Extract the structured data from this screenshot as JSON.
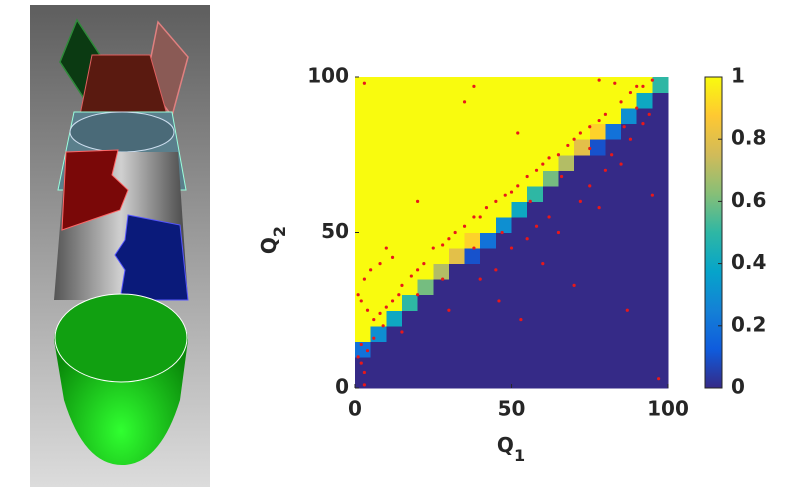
{
  "chart_data": {
    "type": "heatmap",
    "xlabel": {
      "text": "Q",
      "subscript": "1"
    },
    "ylabel": {
      "text": "Q",
      "subscript": "2"
    },
    "xlim": [
      0,
      100
    ],
    "ylim": [
      0,
      100
    ],
    "xticks": [
      0,
      50,
      100
    ],
    "yticks": [
      0,
      50,
      100
    ],
    "z": [
      [
        0,
        0,
        0,
        0,
        0,
        0,
        0,
        0,
        0,
        0,
        0,
        0,
        0,
        0,
        0,
        0,
        0,
        0,
        0,
        0
      ],
      [
        0,
        0,
        0,
        0,
        0,
        0,
        0,
        0,
        0,
        0,
        0,
        0,
        0,
        0,
        0,
        0,
        0,
        0,
        0,
        0
      ],
      [
        0.2,
        0,
        0,
        0,
        0,
        0,
        0,
        0,
        0,
        0,
        0,
        0,
        0,
        0,
        0,
        0,
        0,
        0,
        0,
        0
      ],
      [
        1,
        0.3,
        0,
        0,
        0,
        0,
        0,
        0,
        0,
        0,
        0,
        0,
        0,
        0,
        0,
        0,
        0,
        0,
        0,
        0
      ],
      [
        1,
        1,
        0.4,
        0,
        0,
        0,
        0,
        0,
        0,
        0,
        0,
        0,
        0,
        0,
        0,
        0,
        0,
        0,
        0,
        0
      ],
      [
        1,
        1,
        1,
        0.5,
        0,
        0,
        0,
        0,
        0,
        0,
        0,
        0,
        0,
        0,
        0,
        0,
        0,
        0,
        0,
        0
      ],
      [
        1,
        1,
        1,
        1,
        0.6,
        0,
        0,
        0,
        0,
        0,
        0,
        0,
        0,
        0,
        0,
        0,
        0,
        0,
        0,
        0
      ],
      [
        1,
        1,
        1,
        1,
        1,
        0.7,
        0,
        0,
        0,
        0,
        0,
        0,
        0,
        0,
        0,
        0,
        0,
        0,
        0,
        0
      ],
      [
        1,
        1,
        1,
        1,
        1,
        1,
        0.8,
        0.1,
        0,
        0,
        0,
        0,
        0,
        0,
        0,
        0,
        0,
        0,
        0,
        0
      ],
      [
        1,
        1,
        1,
        1,
        1,
        1,
        1,
        0.9,
        0.2,
        0,
        0,
        0,
        0,
        0,
        0,
        0,
        0,
        0,
        0,
        0
      ],
      [
        1,
        1,
        1,
        1,
        1,
        1,
        1,
        1,
        1,
        0.3,
        0,
        0,
        0,
        0,
        0,
        0,
        0,
        0,
        0,
        0
      ],
      [
        1,
        1,
        1,
        1,
        1,
        1,
        1,
        1,
        1,
        1,
        0.4,
        0,
        0,
        0,
        0,
        0,
        0,
        0,
        0,
        0
      ],
      [
        1,
        1,
        1,
        1,
        1,
        1,
        1,
        1,
        1,
        1,
        1,
        0.5,
        0,
        0,
        0,
        0,
        0,
        0,
        0,
        0
      ],
      [
        1,
        1,
        1,
        1,
        1,
        1,
        1,
        1,
        1,
        1,
        1,
        1,
        0.6,
        0,
        0,
        0,
        0,
        0,
        0,
        0
      ],
      [
        1,
        1,
        1,
        1,
        1,
        1,
        1,
        1,
        1,
        1,
        1,
        1,
        1,
        0.7,
        0,
        0,
        0,
        0,
        0,
        0
      ],
      [
        1,
        1,
        1,
        1,
        1,
        1,
        1,
        1,
        1,
        1,
        1,
        1,
        1,
        1,
        0.8,
        0.1,
        0,
        0,
        0,
        0
      ],
      [
        1,
        1,
        1,
        1,
        1,
        1,
        1,
        1,
        1,
        1,
        1,
        1,
        1,
        1,
        1,
        0.9,
        0.2,
        0,
        0,
        0
      ],
      [
        1,
        1,
        1,
        1,
        1,
        1,
        1,
        1,
        1,
        1,
        1,
        1,
        1,
        1,
        1,
        1,
        1,
        0.3,
        0,
        0
      ],
      [
        1,
        1,
        1,
        1,
        1,
        1,
        1,
        1,
        1,
        1,
        1,
        1,
        1,
        1,
        1,
        1,
        1,
        1,
        0.4,
        0
      ],
      [
        1,
        1,
        1,
        1,
        1,
        1,
        1,
        1,
        1,
        1,
        1,
        1,
        1,
        1,
        1,
        1,
        1,
        1,
        1,
        0.5
      ]
    ],
    "colormap": [
      "#352a87",
      "#0f5cdd",
      "#1481d6",
      "#06a4ca",
      "#2eb7a4",
      "#87bf77",
      "#d1bb59",
      "#fec832",
      "#f9fb0e"
    ],
    "colorbar": {
      "lim": [
        0,
        1
      ],
      "ticks": [
        0,
        0.2,
        0.4,
        0.6,
        0.8,
        1
      ]
    },
    "scatter": {
      "color": "#e8181a",
      "x": [
        3,
        38,
        35,
        78,
        83,
        90,
        52,
        20,
        10,
        8,
        12,
        5,
        3,
        1,
        2,
        4,
        6,
        8,
        10,
        12,
        14,
        15,
        18,
        20,
        22,
        25,
        28,
        30,
        32,
        35,
        38,
        40,
        42,
        45,
        48,
        50,
        52,
        55,
        58,
        60,
        62,
        65,
        68,
        70,
        72,
        75,
        78,
        80,
        85,
        88,
        92,
        95,
        1,
        2,
        3,
        3,
        2,
        4,
        6,
        9,
        15,
        30,
        40,
        45,
        50,
        55,
        58,
        60,
        62,
        65,
        70,
        72,
        75,
        78,
        80,
        82,
        85,
        87,
        88,
        92,
        95,
        97,
        90,
        94,
        86,
        75,
        66,
        56,
        47,
        38,
        28,
        20,
        46,
        53
      ],
      "y": [
        98,
        97,
        92,
        99,
        98,
        97,
        82,
        60,
        45,
        40,
        42,
        38,
        35,
        30,
        28,
        25,
        22,
        24,
        26,
        28,
        30,
        33,
        36,
        38,
        40,
        45,
        46,
        48,
        50,
        52,
        55,
        55,
        58,
        60,
        62,
        63,
        65,
        68,
        70,
        72,
        74,
        75,
        78,
        80,
        82,
        84,
        86,
        88,
        92,
        95,
        97,
        99,
        10,
        8,
        5,
        1,
        14,
        12,
        16,
        20,
        18,
        25,
        35,
        38,
        45,
        48,
        52,
        40,
        55,
        50,
        33,
        60,
        65,
        58,
        70,
        75,
        72,
        25,
        80,
        85,
        62,
        3,
        90,
        88,
        84,
        77,
        68,
        60,
        50,
        45,
        35,
        30,
        28,
        22
      ]
    }
  }
}
